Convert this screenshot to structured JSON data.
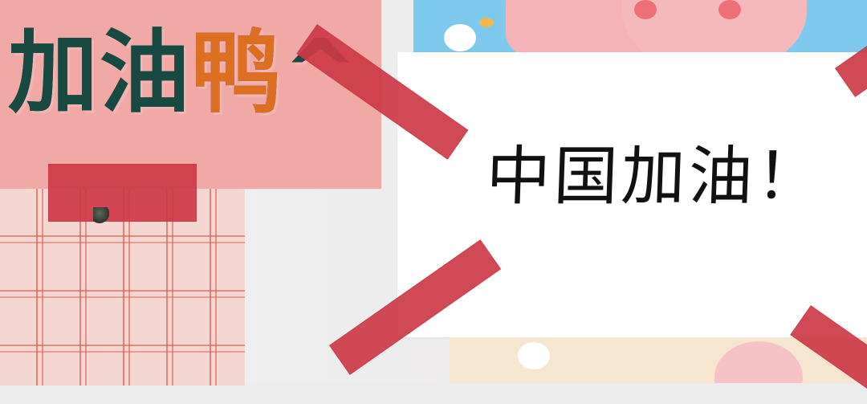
{
  "scene": {
    "pink_sign_text": "加油鸭^",
    "pink_sign_text_parts": [
      "加油",
      "鸭",
      "^"
    ],
    "white_card_text": "中国加油！",
    "colors": {
      "pink_card": "#f1a9a6",
      "pink_text": "#184a42",
      "pink_text_accent": "#dc6f22",
      "tape": "#cd3947",
      "white_card": "#ffffff",
      "plaid_lines": "#dc5546"
    }
  }
}
